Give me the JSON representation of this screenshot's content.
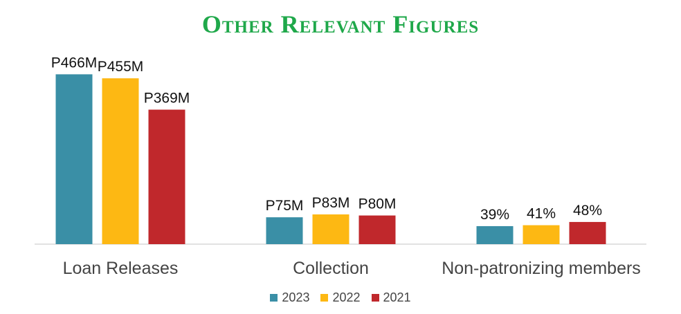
{
  "chart_data": {
    "type": "bar",
    "title": "Other Relevant Figures",
    "categories": [
      "Loan Releases",
      "Collection",
      "Non-patronizing members"
    ],
    "series": [
      {
        "name": "2023",
        "color": "#3a8fa6",
        "values": [
          466,
          75,
          39
        ],
        "labels": [
          "P466M",
          "P75M",
          "39%"
        ]
      },
      {
        "name": "2022",
        "color": "#fdb813",
        "values": [
          455,
          83,
          41
        ],
        "labels": [
          "P455M",
          "P83M",
          "41%"
        ]
      },
      {
        "name": "2021",
        "color": "#c0282c",
        "values": [
          369,
          80,
          48
        ],
        "labels": [
          "P369M",
          "P80M",
          "48%"
        ]
      }
    ],
    "legend_position": "bottom",
    "grid": false,
    "title_color": "#1fa84a"
  }
}
